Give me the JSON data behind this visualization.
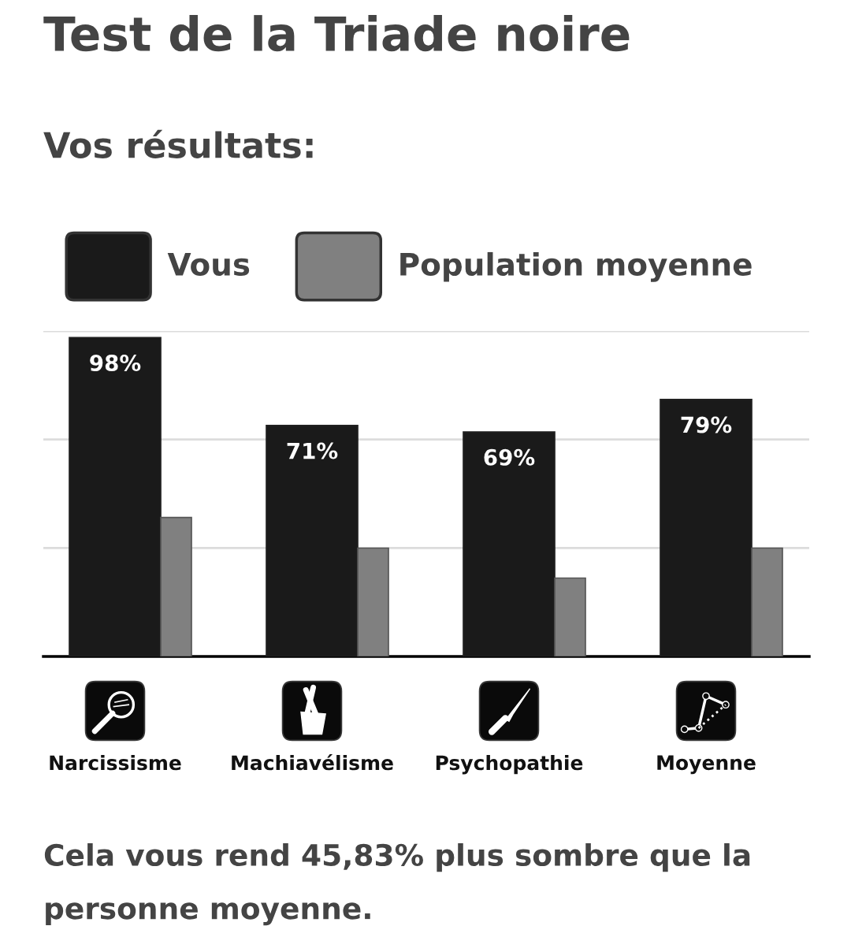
{
  "chart_data": {
    "type": "bar",
    "title": "Test de la Triade noire",
    "subtitle": "Vos résultats:",
    "categories": [
      "Narcissisme",
      "Machiavélisme",
      "Psychopathie",
      "Moyenne"
    ],
    "series": [
      {
        "name": "Vous",
        "color": "#1a1a1a",
        "values": [
          98,
          71,
          69,
          79
        ],
        "value_labels": [
          "98%",
          "71%",
          "69%",
          "79%"
        ]
      },
      {
        "name": "Population moyenne",
        "color": "#808080",
        "values": [
          42.7,
          33.3,
          24.1,
          33.3
        ]
      }
    ],
    "ylim": [
      0,
      100
    ],
    "yticks": [
      {
        "value": 33.3,
        "label": null
      },
      {
        "value": 66.7,
        "label": null
      },
      {
        "value": 100,
        "label": null
      }
    ],
    "tick_labels": "x",
    "grid": "y",
    "legend": "top",
    "annotations": [
      "Cela vous rend 45,83% plus sombre que la personne moyenne."
    ]
  }
}
